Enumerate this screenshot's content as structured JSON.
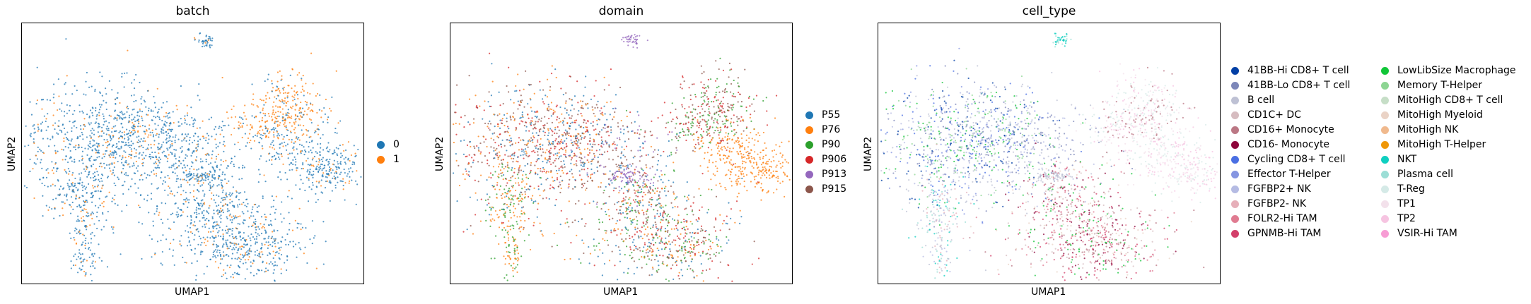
{
  "chart_data": [
    {
      "type": "scatter",
      "title": "batch",
      "xlabel": "UMAP1",
      "ylabel": "UMAP2",
      "grid": false,
      "legend_position": "right",
      "legend": [
        {
          "label": "0",
          "color": "#1f77b4"
        },
        {
          "label": "1",
          "color": "#ff7f0e"
        }
      ]
    },
    {
      "type": "scatter",
      "title": "domain",
      "xlabel": "UMAP1",
      "ylabel": "UMAP2",
      "grid": false,
      "legend_position": "right",
      "legend": [
        {
          "label": "P55",
          "color": "#1f77b4"
        },
        {
          "label": "P76",
          "color": "#ff7f0e"
        },
        {
          "label": "P90",
          "color": "#2ca02c"
        },
        {
          "label": "P906",
          "color": "#d62728"
        },
        {
          "label": "P913",
          "color": "#9467bd"
        },
        {
          "label": "P915",
          "color": "#8c564b"
        }
      ]
    },
    {
      "type": "scatter",
      "title": "cell_type",
      "xlabel": "UMAP1",
      "ylabel": "UMAP2",
      "grid": false,
      "legend_position": "right",
      "legend": [
        {
          "label": "41BB-Hi CD8+ T cell",
          "color": "#023fa5"
        },
        {
          "label": "41BB-Lo CD8+ T cell",
          "color": "#7d87b9"
        },
        {
          "label": "B cell",
          "color": "#bec1d4"
        },
        {
          "label": "CD1C+ DC",
          "color": "#d6bcc0"
        },
        {
          "label": "CD16+ Monocyte",
          "color": "#bb7784"
        },
        {
          "label": "CD16- Monocyte",
          "color": "#8e063b"
        },
        {
          "label": "Cycling CD8+ T cell",
          "color": "#4a6fe3"
        },
        {
          "label": "Effector T-Helper",
          "color": "#8595e1"
        },
        {
          "label": "FGFBP2+ NK",
          "color": "#b5bbe3"
        },
        {
          "label": "FGFBP2- NK",
          "color": "#e6afb9"
        },
        {
          "label": "FOLR2-Hi TAM",
          "color": "#e07b91"
        },
        {
          "label": "GPNMB-Hi TAM",
          "color": "#d33f6a"
        },
        {
          "label": "LowLibSize Macrophage",
          "color": "#11c638"
        },
        {
          "label": "Memory T-Helper",
          "color": "#8dd593"
        },
        {
          "label": "MitoHigh CD8+ T cell",
          "color": "#c6dec7"
        },
        {
          "label": "MitoHigh Myeloid",
          "color": "#ead3c6"
        },
        {
          "label": "MitoHigh NK",
          "color": "#f0b98d"
        },
        {
          "label": "MitoHigh T-Helper",
          "color": "#ef9708"
        },
        {
          "label": "NKT",
          "color": "#0fcfc0"
        },
        {
          "label": "Plasma cell",
          "color": "#9cded6"
        },
        {
          "label": "T-Reg",
          "color": "#d5eae7"
        },
        {
          "label": "TP1",
          "color": "#f3e1eb"
        },
        {
          "label": "TP2",
          "color": "#f6c4e1"
        },
        {
          "label": "VSIR-Hi TAM",
          "color": "#f79cd4"
        }
      ]
    }
  ]
}
